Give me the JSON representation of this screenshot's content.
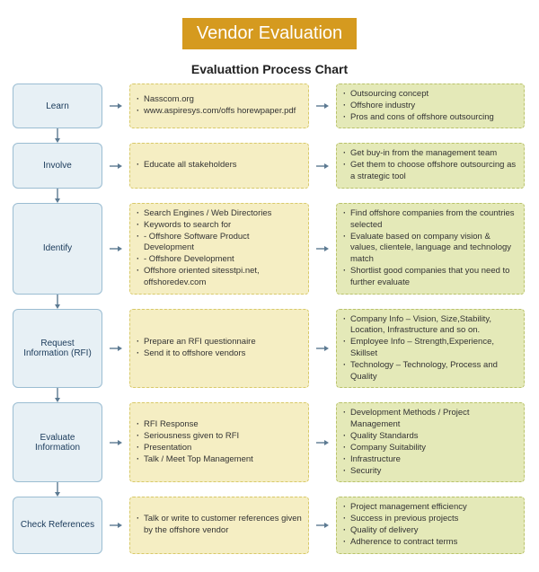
{
  "type": "flowchart",
  "title": "Vendor Evaluation",
  "subtitle": "Evaluattion Process Chart",
  "colors": {
    "banner_bg": "#d59a1f",
    "banner_text": "#ffffff",
    "step_fill": "#e7f0f5",
    "step_border": "#9bbdd2",
    "mid_fill": "#f5eec3",
    "mid_border": "#d8c96a",
    "right_fill": "#e4e9b8",
    "right_border": "#b9c26a",
    "arrow": "#5c7a92",
    "text": "#333333",
    "step_text": "#1a3a5a"
  },
  "fontsize": {
    "title": 20,
    "subtitle": 14,
    "step": 10,
    "body": 9.5
  },
  "steps": [
    {
      "label": "Learn",
      "mid": [
        "Nasscom.org",
        "www.aspiresys.com/offs horewpaper.pdf"
      ],
      "right": [
        "Outsourcing concept",
        "Offshore industry",
        "Pros and cons of offshore outsourcing"
      ]
    },
    {
      "label": "Involve",
      "mid": [
        "Educate all stakeholders"
      ],
      "right": [
        "Get buy-in from the management team",
        "Get them to choose offshore outsourcing as a strategic tool"
      ]
    },
    {
      "label": "Identify",
      "mid": [
        "Search Engines / Web Directories",
        "Keywords to search for",
        "_sub:- Offshore Software Product Development",
        "_sub:- Offshore Development",
        "Offshore oriented sitesstpi.net, offshoredev.com"
      ],
      "right": [
        "Find offshore companies from the countries selected",
        "Evaluate based on company vision & values, clientele, language and technology match",
        "Shortlist good companies that you need to further evaluate"
      ]
    },
    {
      "label": "Request Information (RFI)",
      "mid": [
        "Prepare an RFI questionnaire",
        "Send it to offshore vendors"
      ],
      "right": [
        "Company Info – Vision, Size,Stability, Location, Infrastructure and so on.",
        "Employee Info – Strength,Experience, Skillset",
        "Technology – Technology, Process and Quality"
      ]
    },
    {
      "label": "Evaluate Information",
      "mid": [
        "RFI Response",
        "Seriousness given to RFI",
        "Presentation",
        "Talk / Meet Top Management"
      ],
      "right": [
        "Development Methods / Project Management",
        "Quality Standards",
        "Company Suitability",
        "Infrastructure",
        "Security"
      ]
    },
    {
      "label": "Check References",
      "mid": [
        "Talk or write to customer references given by the offshore vendor"
      ],
      "right": [
        "Project management efficiency",
        "Success in previous projects",
        "Quality of delivery",
        "Adherence to contract terms"
      ]
    }
  ]
}
